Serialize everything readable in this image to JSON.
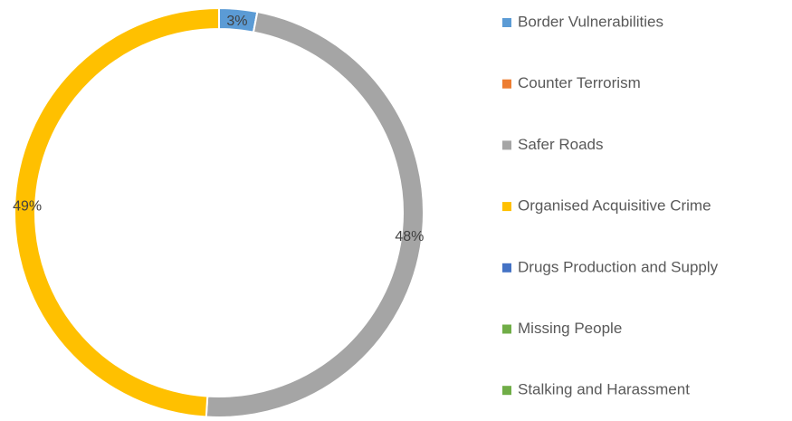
{
  "chart_data": {
    "type": "donut",
    "categories": [
      "Border Vulnerabilities",
      "Counter Terrorism",
      "Safer Roads",
      "Organised Acquisitive Crime",
      "Drugs Production and Supply",
      "Missing People",
      "Stalking and Harassment"
    ],
    "values": [
      3,
      0,
      48,
      49,
      0,
      0,
      0
    ],
    "value_labels": [
      "3%",
      null,
      "48%",
      "49%",
      null,
      null,
      null
    ],
    "colors": [
      "#5b9bd5",
      "#ed7d31",
      "#a5a5a5",
      "#ffc000",
      "#4472c4",
      "#70ad47",
      "#70ad47"
    ],
    "legend": "right"
  }
}
